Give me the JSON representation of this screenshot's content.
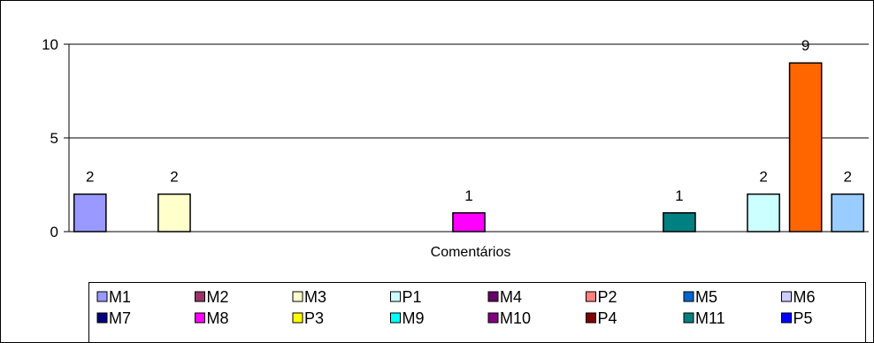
{
  "chart_data": {
    "type": "bar",
    "categories": [
      "Comentários"
    ],
    "xlabel": "Comentários",
    "ylim": [
      0,
      10
    ],
    "y_ticks": [
      0,
      5,
      10
    ],
    "grid": true,
    "legend_placement": "bottom",
    "series": [
      {
        "name": "M1",
        "values": [
          2
        ],
        "color": "#9999FF"
      },
      {
        "name": "M2",
        "values": [
          0
        ],
        "color": "#993366"
      },
      {
        "name": "M3",
        "values": [
          2
        ],
        "color": "#FFFFCC"
      },
      {
        "name": "P1",
        "values": [
          0
        ],
        "color": "#CCFFFF"
      },
      {
        "name": "M4",
        "values": [
          0
        ],
        "color": "#660066"
      },
      {
        "name": "P2",
        "values": [
          0
        ],
        "color": "#FF8080"
      },
      {
        "name": "M5",
        "values": [
          0
        ],
        "color": "#0066CC"
      },
      {
        "name": "M6",
        "values": [
          0
        ],
        "color": "#CCCCFF"
      },
      {
        "name": "M7",
        "values": [
          0
        ],
        "color": "#000080"
      },
      {
        "name": "M8",
        "values": [
          1
        ],
        "color": "#FF00FF"
      },
      {
        "name": "P3",
        "values": [
          0
        ],
        "color": "#FFFF00"
      },
      {
        "name": "M9",
        "values": [
          0
        ],
        "color": "#00FFFF"
      },
      {
        "name": "M10",
        "values": [
          0
        ],
        "color": "#800080"
      },
      {
        "name": "P4",
        "values": [
          0
        ],
        "color": "#800000"
      },
      {
        "name": "M11",
        "values": [
          1
        ],
        "color": "#008080"
      },
      {
        "name": "P5",
        "values": [
          0
        ],
        "color": "#0000FF"
      },
      {
        "name": "",
        "values": [
          2
        ],
        "color": "#CCFFFF"
      },
      {
        "name": "",
        "values": [
          9
        ],
        "color": "#FF6600"
      },
      {
        "name": "",
        "values": [
          2
        ],
        "color": "#99CCFF"
      }
    ]
  }
}
